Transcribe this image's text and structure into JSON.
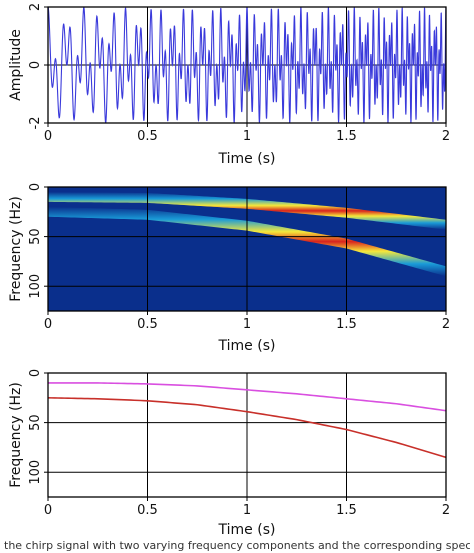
{
  "caption": "the chirp signal with two varying frequency components and the corresponding spectrogram estimates",
  "chart_data": [
    {
      "type": "line",
      "name": "signal",
      "xlabel": "Time (s)",
      "ylabel": "Amplitude",
      "xlim": [
        0,
        2
      ],
      "ylim": [
        -2,
        2
      ],
      "xticks": [
        0,
        0.5,
        1,
        1.5,
        2
      ],
      "xtick_labels": [
        "0",
        "0.5",
        "1",
        "1.5",
        "2"
      ],
      "yticks": [
        2,
        0,
        -2
      ],
      "ytick_labels": [
        "2",
        "0",
        "-2"
      ],
      "grid": true,
      "line_color": "#3a3adb",
      "components": [
        {
          "f0": 10,
          "f1": 38,
          "amplitude": 1
        },
        {
          "f0": 25,
          "f1": 85,
          "amplitude": 1
        }
      ]
    },
    {
      "type": "heatmap",
      "name": "time-frequency",
      "xlabel": "Time (s)",
      "ylabel": "Frequency (Hz)",
      "xlim": [
        0,
        2
      ],
      "ylim": [
        0,
        125
      ],
      "y_inverted": true,
      "xticks": [
        0,
        0.5,
        1,
        1.5,
        2
      ],
      "xtick_labels": [
        "0",
        "0.5",
        "1",
        "1.5",
        "2"
      ],
      "yticks": [
        0,
        50,
        100
      ],
      "ytick_labels": [
        "0",
        "50",
        "100"
      ],
      "grid": true,
      "background_color": "#0a2f8c",
      "ridges": [
        {
          "t": [
            0,
            0.5,
            1,
            1.5,
            2
          ],
          "f": [
            10,
            11,
            17,
            26,
            38
          ]
        },
        {
          "t": [
            0,
            0.5,
            1,
            1.5,
            2
          ],
          "f": [
            25,
            28,
            39,
            57,
            85
          ]
        }
      ]
    },
    {
      "type": "line",
      "name": "instantaneous-frequency",
      "xlabel": "Time (s)",
      "ylabel": "Frequency (Hz)",
      "xlim": [
        0,
        2
      ],
      "ylim": [
        0,
        125
      ],
      "y_inverted": true,
      "xticks": [
        0,
        0.5,
        1,
        1.5,
        2
      ],
      "xtick_labels": [
        "0",
        "0.5",
        "1",
        "1.5",
        "2"
      ],
      "yticks": [
        0,
        50,
        100
      ],
      "ytick_labels": [
        "0",
        "50",
        "100"
      ],
      "grid": true,
      "series": [
        {
          "color": "#d94fe0",
          "t": [
            0,
            0.25,
            0.5,
            0.75,
            1,
            1.25,
            1.5,
            1.75,
            2
          ],
          "f": [
            10,
            10,
            11,
            13,
            17,
            21,
            26,
            31,
            38
          ]
        },
        {
          "color": "#c8302a",
          "t": [
            0,
            0.25,
            0.5,
            0.75,
            1,
            1.25,
            1.5,
            1.75,
            2
          ],
          "f": [
            25,
            26,
            28,
            32,
            39,
            47,
            57,
            70,
            85
          ]
        }
      ]
    }
  ]
}
